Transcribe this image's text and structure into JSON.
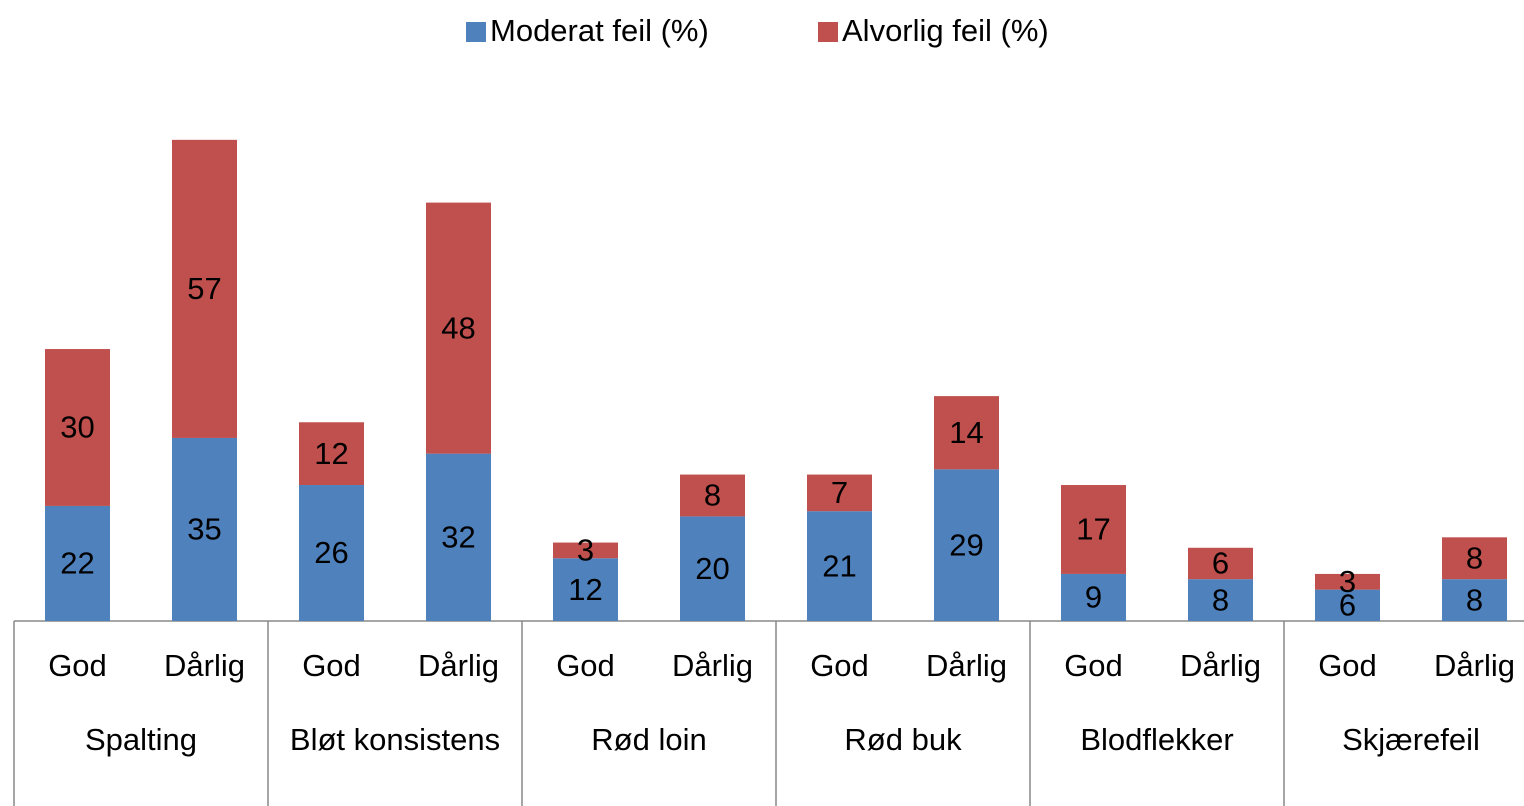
{
  "chart_data": {
    "type": "stacked_bar",
    "groups": [
      "Spalting",
      "Bløt konsistens",
      "Rød loin",
      "Rød buk",
      "Blodflekker",
      "Skjærefeil"
    ],
    "categories": [
      "God",
      "Dårlig",
      "God",
      "Dårlig",
      "God",
      "Dårlig",
      "God",
      "Dårlig",
      "God",
      "Dårlig",
      "God",
      "Dårlig"
    ],
    "series": [
      {
        "name": "Moderat feil (%)",
        "color": "#4f81bd",
        "values": [
          22,
          35,
          26,
          32,
          12,
          20,
          21,
          29,
          9,
          8,
          6,
          8
        ]
      },
      {
        "name": "Alvorlig feil (%)",
        "color": "#c0504d",
        "values": [
          30,
          57,
          12,
          48,
          3,
          8,
          7,
          14,
          17,
          6,
          3,
          8
        ]
      }
    ],
    "legend": "top"
  }
}
